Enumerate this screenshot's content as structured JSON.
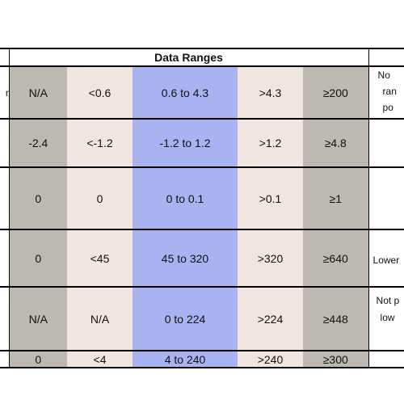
{
  "table": {
    "title": "Data Ranges",
    "rows": [
      {
        "stub": "n",
        "cells": [
          "N/A",
          "<0.6",
          "0.6 to 4.3",
          ">4.3",
          "≥200"
        ],
        "note": [
          "No",
          "ran",
          "po"
        ]
      },
      {
        "stub": "",
        "cells": [
          "-2.4",
          "<-1.2",
          "-1.2 to 1.2",
          ">1.2",
          "≥4.8"
        ],
        "note": []
      },
      {
        "stub": "",
        "cells": [
          "0",
          "0",
          "0 to 0.1",
          ">0.1",
          "≥1"
        ],
        "note": []
      },
      {
        "stub": "",
        "cells": [
          "0",
          "<45",
          "45 to 320",
          ">320",
          "≥640"
        ],
        "note": [
          "Lower"
        ]
      },
      {
        "stub": "",
        "cells": [
          "N/A",
          "N/A",
          "0 to 224",
          ">224",
          "≥448"
        ],
        "note": [
          "Not p",
          "low"
        ]
      },
      {
        "stub": "",
        "cells": [
          "0",
          "<4",
          "4  to 240",
          ">240",
          "≥300"
        ],
        "note": []
      }
    ]
  }
}
